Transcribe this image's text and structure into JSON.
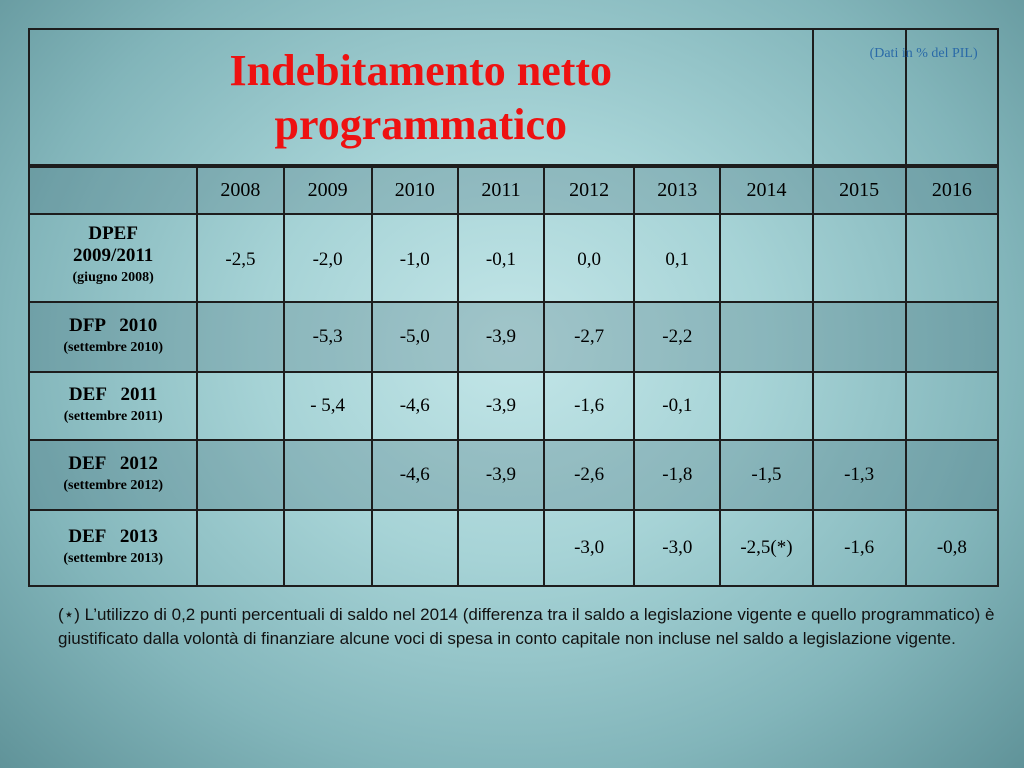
{
  "title": {
    "line1": "Indebitamento netto",
    "line2": "programmatico"
  },
  "unit_note": "(Dati in % del PIL)",
  "years": [
    "2008",
    "2009",
    "2010",
    "2011",
    "2012",
    "2013",
    "2014",
    "2015",
    "2016"
  ],
  "rows": [
    {
      "name_line1": "DPEF",
      "name_line2": "2009/2011",
      "date": "(giugno 2008)",
      "values": [
        "-2,5",
        "-2,0",
        "-1,0",
        "-0,1",
        "0,0",
        "0,1",
        "",
        "",
        ""
      ]
    },
    {
      "name": "DFP   2010",
      "date": "(settembre 2010)",
      "values": [
        "",
        "-5,3",
        "-5,0",
        "-3,9",
        "-2,7",
        "-2,2",
        "",
        "",
        ""
      ]
    },
    {
      "name": "DEF   2011",
      "date": "(settembre 2011)",
      "values": [
        "",
        "- 5,4",
        "-4,6",
        "-3,9",
        "-1,6",
        "-0,1",
        "",
        "",
        ""
      ]
    },
    {
      "name": "DEF   2012",
      "date": "(settembre 2012)",
      "values": [
        "",
        "",
        "-4,6",
        "-3,9",
        "-2,6",
        "-1,8",
        "-1,5",
        "-1,3",
        ""
      ]
    },
    {
      "name": "DEF   2013",
      "date": "(settembre 2013)",
      "values": [
        "",
        "",
        "",
        "",
        "-3,0",
        "-3,0",
        "-2,5(*)",
        "-1,6",
        "-0,8"
      ]
    }
  ],
  "footnote": "(⋆) L’utilizzo di 0,2 punti percentuali di saldo nel 2014 (differenza tra il saldo a legislazione vigente e quello programmatico) è giustificato dalla volontà di finanziare alcune voci di spesa in conto capitale non incluse nel saldo a legislazione vigente."
}
